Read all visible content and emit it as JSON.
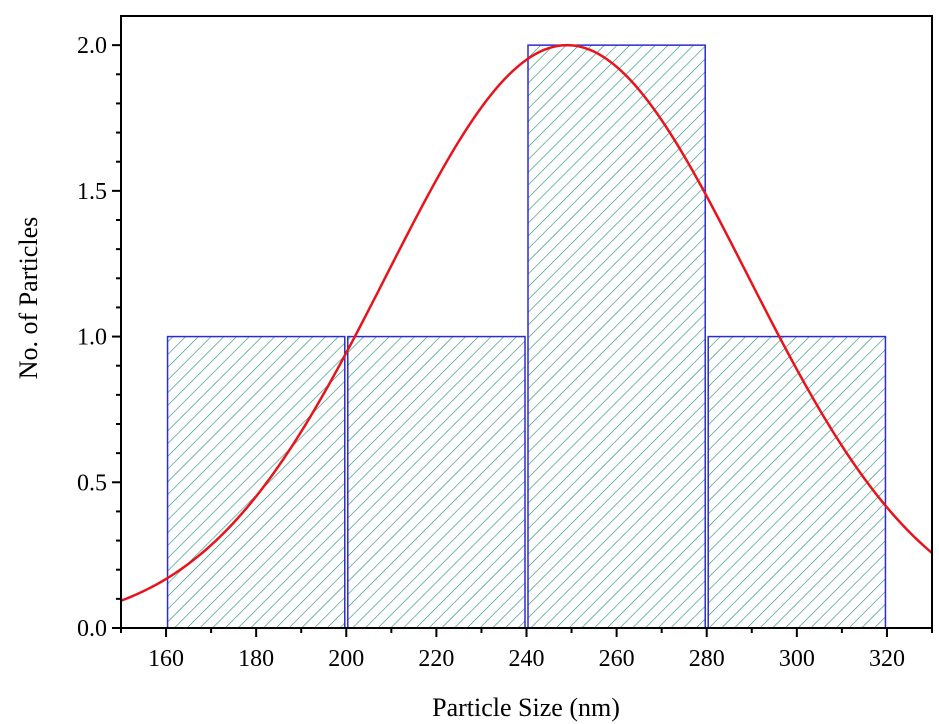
{
  "chart_data": {
    "type": "bar",
    "title": "",
    "xlabel": "Particle Size (nm)",
    "ylabel": "No. of Particles",
    "xlim": [
      150,
      330
    ],
    "ylim": [
      0,
      2.1
    ],
    "x_ticks": [
      "160",
      "180",
      "200",
      "220",
      "240",
      "260",
      "280",
      "300",
      "320"
    ],
    "x_tick_values": [
      160,
      180,
      200,
      220,
      240,
      260,
      280,
      300,
      320
    ],
    "y_ticks": [
      "0.0",
      "0.5",
      "1.0",
      "1.5",
      "2.0"
    ],
    "y_tick_values": [
      0,
      0.5,
      1.0,
      1.5,
      2.0
    ],
    "bins": [
      {
        "start": 160,
        "end": 200,
        "count": 1
      },
      {
        "start": 200,
        "end": 240,
        "count": 1
      },
      {
        "start": 240,
        "end": 280,
        "count": 2
      },
      {
        "start": 280,
        "end": 320,
        "count": 1
      }
    ],
    "fit_curve": {
      "type": "gaussian",
      "center": 249,
      "amplitude": 2.0,
      "sigma": 40,
      "color": "#e8141c"
    },
    "bar_fill_pattern": "diagonal-hatch",
    "bar_edge_color": "#2b2bd6",
    "bar_hatch_color": "#1f8a7a",
    "grid": false,
    "legend": "none"
  }
}
